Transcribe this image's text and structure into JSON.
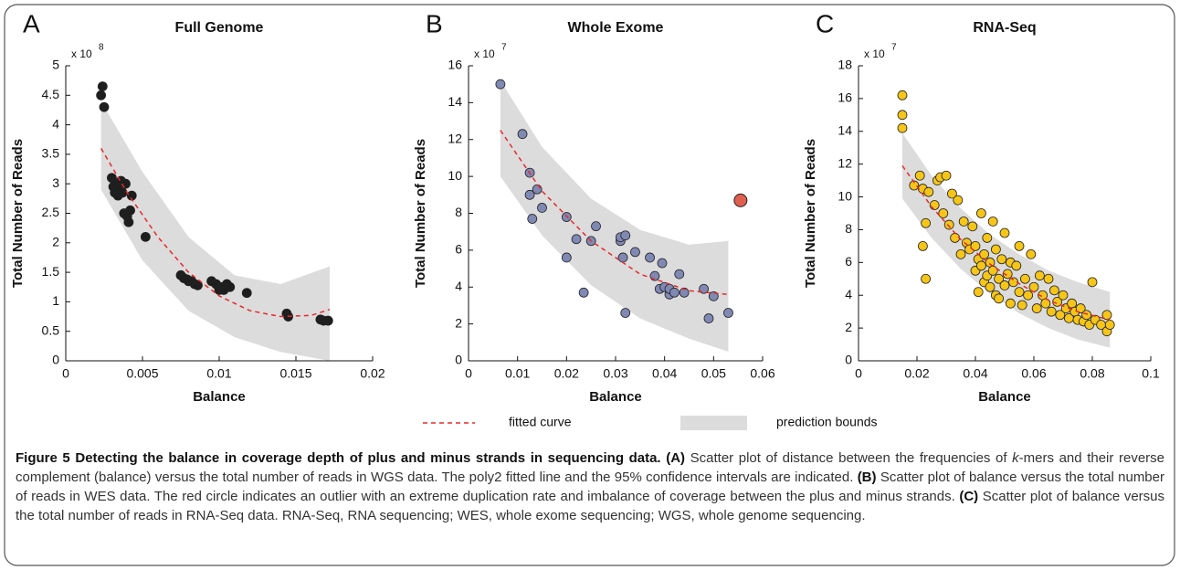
{
  "chart_data": [
    {
      "type": "scatter",
      "panel_label": "A",
      "title": "Full Genome",
      "xlabel": "Balance",
      "ylabel": "Total Number of Reads",
      "y_scale_label": "x 10",
      "y_scale_exponent": "8",
      "xlim": [
        0,
        0.02
      ],
      "xticks": [
        0,
        0.005,
        0.01,
        0.015,
        0.02
      ],
      "ylim": [
        0,
        5
      ],
      "yticks": [
        0,
        0.5,
        1,
        1.5,
        2,
        2.5,
        3,
        3.5,
        4,
        4.5,
        5
      ],
      "points": {
        "color": "#1e1e1e",
        "x": [
          0.0023,
          0.0024,
          0.0025,
          0.003,
          0.0031,
          0.0032,
          0.0033,
          0.0034,
          0.0035,
          0.0036,
          0.0037,
          0.0038,
          0.0039,
          0.004,
          0.0041,
          0.0042,
          0.0043,
          0.0052,
          0.0075,
          0.0077,
          0.0079,
          0.008,
          0.0082,
          0.0084,
          0.0086,
          0.0095,
          0.0098,
          0.01,
          0.0102,
          0.0103,
          0.0105,
          0.0107,
          0.0118,
          0.0144,
          0.0145,
          0.0166,
          0.0168,
          0.0171
        ],
        "values": [
          4.5,
          4.65,
          4.3,
          3.1,
          2.95,
          2.85,
          3.0,
          2.8,
          2.9,
          3.05,
          2.85,
          2.5,
          3.0,
          2.45,
          2.35,
          2.55,
          2.8,
          2.1,
          1.45,
          1.4,
          1.38,
          1.35,
          1.35,
          1.3,
          1.28,
          1.35,
          1.3,
          1.2,
          1.25,
          1.2,
          1.3,
          1.25,
          1.15,
          0.8,
          0.75,
          0.7,
          0.68,
          0.68
        ]
      },
      "fit": {
        "color": "#e8282b",
        "x": [
          0.0023,
          0.004,
          0.006,
          0.008,
          0.01,
          0.012,
          0.014,
          0.016,
          0.0172
        ],
        "values": [
          3.6,
          2.85,
          2.1,
          1.5,
          1.1,
          0.85,
          0.75,
          0.77,
          0.87
        ]
      },
      "bounds": {
        "color": "#dcdcdc",
        "x": [
          0.0023,
          0.005,
          0.008,
          0.011,
          0.014,
          0.0172
        ],
        "lower": [
          2.9,
          1.7,
          0.85,
          0.4,
          0.15,
          0
        ],
        "upper": [
          4.4,
          3.2,
          2.1,
          1.45,
          1.3,
          1.6
        ]
      }
    },
    {
      "type": "scatter",
      "panel_label": "B",
      "title": "Whole Exome",
      "xlabel": "Balance",
      "ylabel": "Total Number of Reads",
      "y_scale_label": "x 10",
      "y_scale_exponent": "7",
      "xlim": [
        0,
        0.06
      ],
      "xticks": [
        0,
        0.01,
        0.02,
        0.03,
        0.04,
        0.05,
        0.06
      ],
      "ylim": [
        0,
        16
      ],
      "yticks": [
        0,
        2,
        4,
        6,
        8,
        10,
        12,
        14,
        16
      ],
      "points": {
        "color": "#8088b4",
        "x": [
          0.0065,
          0.011,
          0.0125,
          0.0125,
          0.013,
          0.014,
          0.015,
          0.02,
          0.02,
          0.022,
          0.0235,
          0.025,
          0.026,
          0.031,
          0.031,
          0.032,
          0.0315,
          0.032,
          0.034,
          0.037,
          0.038,
          0.039,
          0.0395,
          0.04,
          0.041,
          0.041,
          0.042,
          0.043,
          0.044,
          0.048,
          0.049,
          0.05,
          0.053
        ],
        "values": [
          15,
          12.3,
          10.2,
          9,
          7.7,
          9.3,
          8.3,
          7.8,
          5.6,
          6.6,
          3.7,
          6.5,
          7.3,
          6.5,
          6.7,
          6.8,
          5.6,
          2.6,
          5.9,
          5.6,
          4.6,
          3.9,
          5.3,
          4.0,
          3.6,
          3.9,
          3.7,
          4.7,
          3.7,
          3.9,
          2.3,
          3.5,
          2.6
        ]
      },
      "outlier": {
        "color": "#e0604f",
        "x": 0.0555,
        "value": 8.7
      },
      "fit": {
        "color": "#e8282b",
        "x": [
          0.0065,
          0.015,
          0.025,
          0.035,
          0.045,
          0.053
        ],
        "values": [
          12.5,
          9.2,
          6.5,
          4.7,
          3.8,
          3.6
        ]
      },
      "bounds": {
        "color": "#dcdcdc",
        "x": [
          0.0065,
          0.015,
          0.025,
          0.035,
          0.045,
          0.053
        ],
        "lower": [
          10,
          6.8,
          4.1,
          2.3,
          1.2,
          0.5
        ],
        "upper": [
          15.2,
          11.6,
          8.8,
          7.1,
          6.3,
          6.5
        ]
      }
    },
    {
      "type": "scatter",
      "panel_label": "C",
      "title": "RNA-Seq",
      "xlabel": "Balance",
      "ylabel": "Total Number of Reads",
      "y_scale_label": "x 10",
      "y_scale_exponent": "7",
      "xlim": [
        0,
        0.1
      ],
      "xticks": [
        0,
        0.02,
        0.04,
        0.06,
        0.08,
        0.1
      ],
      "ylim": [
        0,
        18
      ],
      "yticks": [
        0,
        2,
        4,
        6,
        8,
        10,
        12,
        14,
        16,
        18
      ],
      "points": {
        "color": "#f5c518",
        "x": [
          0.015,
          0.015,
          0.015,
          0.019,
          0.021,
          0.022,
          0.022,
          0.023,
          0.023,
          0.024,
          0.026,
          0.027,
          0.028,
          0.029,
          0.03,
          0.031,
          0.032,
          0.033,
          0.034,
          0.035,
          0.036,
          0.037,
          0.038,
          0.039,
          0.04,
          0.04,
          0.041,
          0.041,
          0.042,
          0.042,
          0.043,
          0.043,
          0.044,
          0.044,
          0.045,
          0.045,
          0.046,
          0.046,
          0.047,
          0.047,
          0.048,
          0.048,
          0.049,
          0.05,
          0.05,
          0.051,
          0.052,
          0.052,
          0.053,
          0.054,
          0.055,
          0.055,
          0.056,
          0.057,
          0.058,
          0.059,
          0.06,
          0.061,
          0.062,
          0.063,
          0.064,
          0.065,
          0.066,
          0.067,
          0.068,
          0.069,
          0.07,
          0.071,
          0.072,
          0.073,
          0.074,
          0.075,
          0.076,
          0.077,
          0.078,
          0.079,
          0.08,
          0.081,
          0.083,
          0.085,
          0.085,
          0.086
        ],
        "values": [
          16.2,
          15,
          14.2,
          10.7,
          11.3,
          10.5,
          7,
          5,
          8.4,
          10.3,
          9.5,
          11,
          11.2,
          9,
          11.3,
          8.3,
          10.2,
          7.5,
          9.8,
          6.5,
          8.5,
          7.2,
          6.8,
          8.2,
          5.5,
          7,
          6.2,
          4.2,
          9,
          5.8,
          6.5,
          4.8,
          7.5,
          5.2,
          6,
          4.5,
          8.5,
          5.5,
          4,
          6.8,
          5,
          3.8,
          6.2,
          4.6,
          7.8,
          5.3,
          3.5,
          6,
          4.8,
          5.8,
          4.2,
          7,
          3.4,
          5,
          4,
          6.5,
          4.5,
          3.2,
          5.2,
          4,
          3.5,
          5,
          3,
          4.3,
          3.6,
          2.8,
          4,
          3.2,
          2.6,
          3.5,
          3,
          2.5,
          3.2,
          2.4,
          2.8,
          2.2,
          4.8,
          2.5,
          2.2,
          2.8,
          1.8,
          2.2
        ]
      },
      "fit": {
        "color": "#e8282b",
        "x": [
          0.015,
          0.025,
          0.035,
          0.045,
          0.055,
          0.065,
          0.075,
          0.086
        ],
        "values": [
          11.9,
          9.4,
          7.4,
          5.9,
          4.7,
          3.7,
          3,
          2.5
        ]
      },
      "bounds": {
        "color": "#dcdcdc",
        "x": [
          0.015,
          0.025,
          0.035,
          0.045,
          0.055,
          0.065,
          0.075,
          0.086
        ],
        "lower": [
          9.9,
          7.5,
          5.6,
          4.1,
          2.9,
          2,
          1.3,
          0.8
        ],
        "upper": [
          13.9,
          11.3,
          9.3,
          7.7,
          6.5,
          5.5,
          4.8,
          4.2
        ]
      }
    }
  ],
  "legend": {
    "fitted_curve": "fitted curve",
    "prediction_bounds": "prediction bounds"
  },
  "caption": {
    "title": "Figure 5 Detecting the balance in coverage depth of plus and minus strands in sequencing data.",
    "parts": [
      {
        "label": "(A)",
        "text": [
          "Scatter plot of distance between the frequencies of",
          "k",
          "-mers and their reverse complement (balance) versus the total number of reads in WGS data. The poly2 fitted line and the 95% confidence intervals are indicated."
        ]
      },
      {
        "label": "(B)",
        "text": [
          "Scatter plot of balance versus the total number of reads in WES data. The red circle indicates an outlier with an extreme duplication rate and imbalance of coverage between the plus and minus strands."
        ]
      },
      {
        "label": "(C)",
        "text": [
          "Scatter plot of balance versus the total number of reads in RNA-Seq data. RNA-Seq, RNA sequencing; WES, whole exome sequencing; WGS, whole genome sequencing."
        ]
      }
    ]
  }
}
